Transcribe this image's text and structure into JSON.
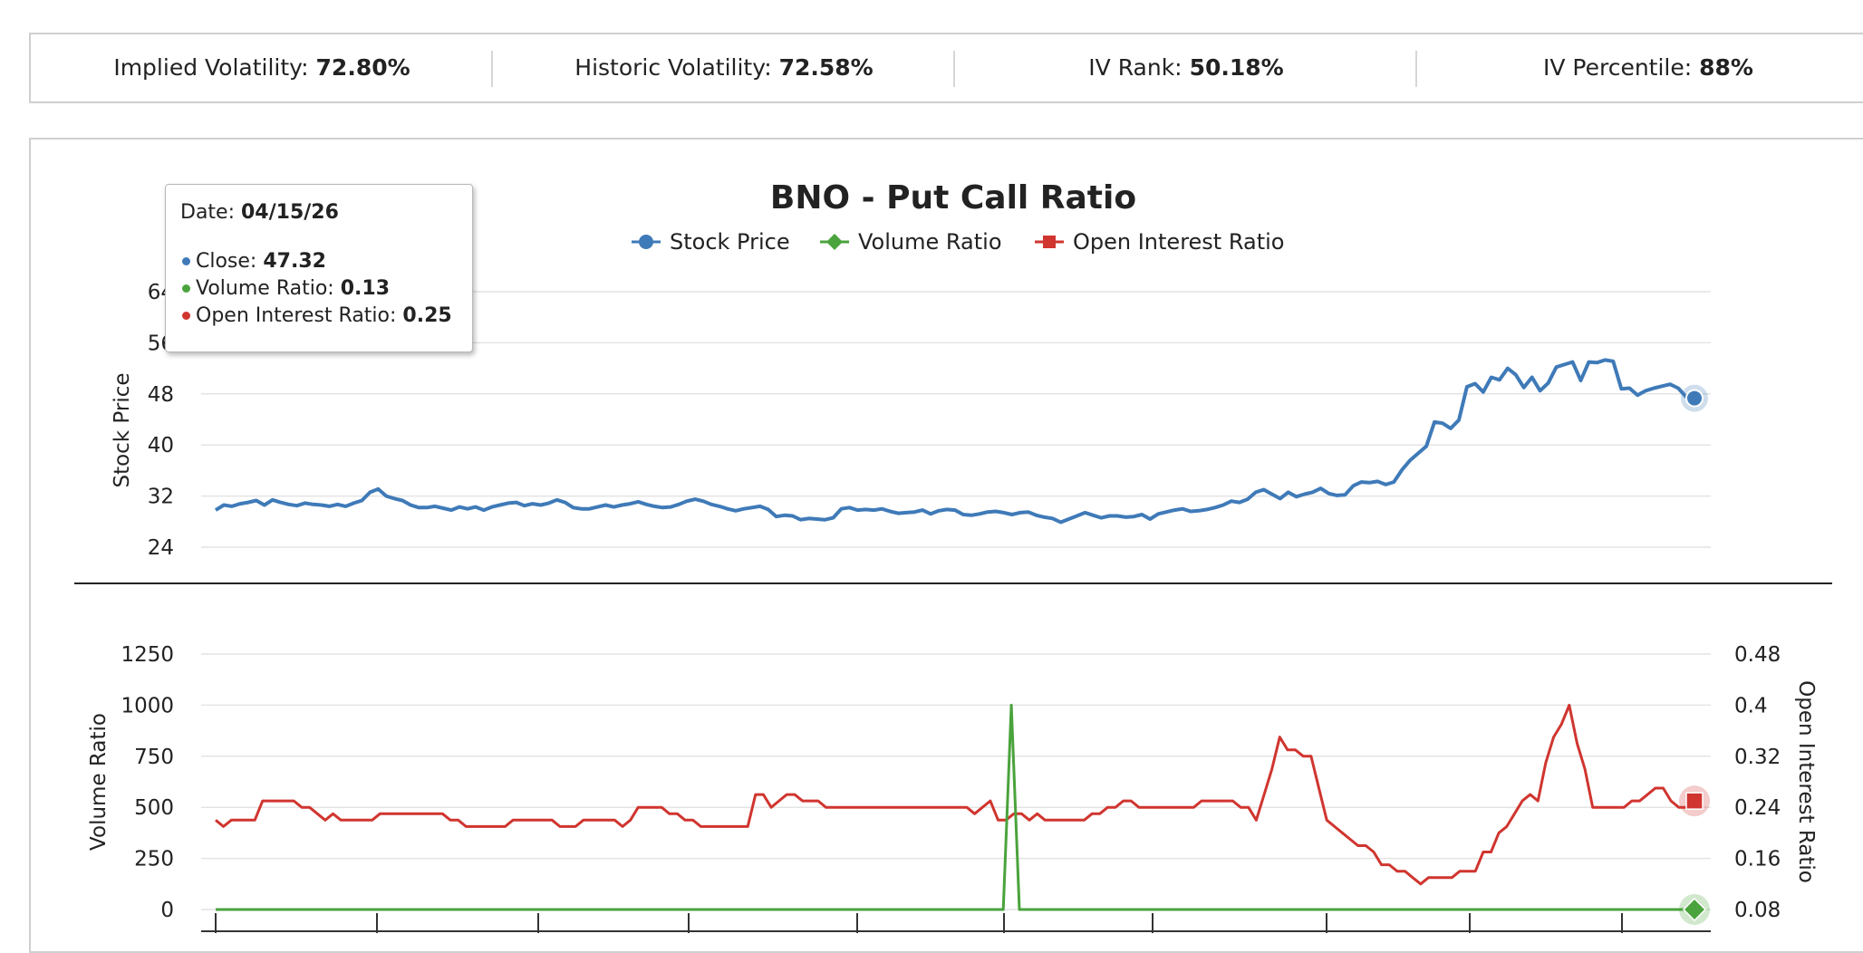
{
  "stats": [
    {
      "label": "Implied Volatility:",
      "value": "72.80%"
    },
    {
      "label": "Historic Volatility:",
      "value": "72.58%"
    },
    {
      "label": "IV Rank:",
      "value": "50.18%"
    },
    {
      "label": "IV Percentile:",
      "value": "88%"
    }
  ],
  "tooltip": {
    "date_label": "Date:",
    "date": "04/15/26",
    "close_label": "Close:",
    "close": "47.32",
    "volume_label": "Volume Ratio:",
    "volume": "0.13",
    "oi_label": "Open Interest Ratio:",
    "oi": "0.25"
  },
  "colors": {
    "stock": "#3f7ab8",
    "volume": "#4aa33c",
    "oi": "#d0352f",
    "grid": "#e4e4e4",
    "axis_text": "#222222"
  },
  "chart_data": {
    "type": "line",
    "title": "BNO - Put Call Ratio",
    "legend": [
      "Stock Price",
      "Volume Ratio",
      "Open Interest Ratio"
    ],
    "legend_position": "top-center",
    "grid": true,
    "upper_panel": {
      "ylabel": "Stock Price",
      "yticks": [
        "24",
        "32",
        "40",
        "48",
        "56",
        "64"
      ],
      "ylim": [
        24,
        64
      ],
      "series": [
        {
          "name": "Stock Price",
          "values": [
            29.8,
            30.6,
            30.4,
            30.8,
            31.0,
            31.3,
            30.6,
            31.4,
            31.0,
            30.7,
            30.5,
            30.9,
            30.7,
            30.6,
            30.4,
            30.7,
            30.4,
            30.9,
            31.3,
            32.6,
            33.1,
            32.0,
            31.6,
            31.3,
            30.6,
            30.2,
            30.2,
            30.4,
            30.1,
            29.8,
            30.3,
            30.0,
            30.3,
            29.8,
            30.3,
            30.6,
            30.9,
            31.0,
            30.5,
            30.8,
            30.6,
            30.9,
            31.4,
            31.0,
            30.2,
            30.0,
            30.0,
            30.3,
            30.6,
            30.3,
            30.6,
            30.8,
            31.1,
            30.7,
            30.4,
            30.2,
            30.3,
            30.7,
            31.2,
            31.5,
            31.2,
            30.7,
            30.4,
            30.0,
            29.7,
            30.0,
            30.2,
            30.4,
            29.9,
            28.8,
            29.0,
            28.9,
            28.3,
            28.5,
            28.4,
            28.3,
            28.6,
            30.0,
            30.2,
            29.8,
            29.9,
            29.8,
            30.0,
            29.6,
            29.3,
            29.4,
            29.5,
            29.8,
            29.2,
            29.7,
            29.9,
            29.8,
            29.1,
            29.0,
            29.2,
            29.5,
            29.6,
            29.4,
            29.1,
            29.4,
            29.5,
            29.0,
            28.7,
            28.5,
            27.9,
            28.4,
            28.9,
            29.4,
            29.0,
            28.6,
            28.9,
            28.9,
            28.7,
            28.8,
            29.1,
            28.4,
            29.2,
            29.5,
            29.8,
            30.0,
            29.6,
            29.7,
            29.9,
            30.2,
            30.6,
            31.2,
            31.0,
            31.5,
            32.6,
            33.0,
            32.3,
            31.6,
            32.6,
            31.9,
            32.3,
            32.6,
            33.2,
            32.4,
            32.1,
            32.2,
            33.6,
            34.2,
            34.1,
            34.3,
            33.8,
            34.2,
            36.1,
            37.6,
            38.7,
            39.8,
            43.6,
            43.4,
            42.6,
            43.9,
            49.1,
            49.6,
            48.3,
            50.6,
            50.2,
            52.0,
            51.0,
            49.0,
            50.6,
            48.5,
            49.7,
            52.2,
            52.6,
            53.0,
            50.1,
            53.0,
            52.9,
            53.3,
            53.1,
            48.8,
            48.9,
            47.8,
            48.5,
            48.9,
            49.2,
            49.5,
            48.9,
            47.5,
            47.32
          ]
        }
      ]
    },
    "lower_panel": {
      "ylabel_left": "Volume Ratio",
      "ylabel_right": "Open Interest Ratio",
      "yticks_left": [
        "0",
        "250",
        "500",
        "750",
        "1000",
        "1250"
      ],
      "yticks_right": [
        "0.08",
        "0.16",
        "0.24",
        "0.32",
        "0.4",
        "0.48"
      ],
      "ylim_left": [
        0,
        1250
      ],
      "ylim_right": [
        0.08,
        0.48
      ],
      "series": [
        {
          "name": "Volume Ratio",
          "values": [
            0,
            0,
            0,
            0,
            0,
            0,
            0,
            0,
            0,
            0,
            0,
            0,
            0,
            0,
            0,
            0,
            0,
            0,
            0,
            0,
            0,
            0,
            0,
            0,
            0,
            0,
            0,
            0,
            0,
            0,
            0,
            0,
            0,
            0,
            0,
            0,
            0,
            0,
            0,
            0,
            0,
            0,
            0,
            0,
            0,
            0,
            0,
            0,
            0,
            0,
            0,
            0,
            0,
            0,
            0,
            0,
            0,
            0,
            0,
            0,
            0,
            0,
            0,
            0,
            0,
            0,
            0,
            0,
            0,
            0,
            0,
            0,
            0,
            0,
            0,
            0,
            0,
            0,
            0,
            0,
            0,
            0,
            0,
            0,
            0,
            0,
            0,
            0,
            0,
            0,
            0,
            0,
            0,
            0,
            0,
            0,
            0,
            0,
            0,
            1000,
            0,
            0,
            0,
            0,
            0,
            0,
            0,
            0,
            0,
            0,
            0,
            0,
            0,
            0,
            0,
            0,
            0,
            0,
            0,
            0,
            0,
            0,
            0,
            0,
            0,
            0,
            0,
            0,
            0,
            0,
            0,
            0,
            0,
            0,
            0,
            0,
            0,
            0,
            0,
            0,
            0,
            0,
            0,
            0,
            0,
            0,
            0,
            0,
            0,
            0,
            0,
            0,
            0,
            0,
            0,
            0,
            0,
            0,
            0,
            0,
            0,
            0,
            0,
            0,
            0,
            0,
            0,
            0,
            0,
            0,
            0,
            0,
            0,
            0,
            0,
            0,
            0,
            0,
            0,
            0,
            0,
            0,
            0,
            0,
            0.13
          ]
        },
        {
          "name": "Open Interest Ratio",
          "values": [
            0.22,
            0.21,
            0.22,
            0.22,
            0.22,
            0.22,
            0.25,
            0.25,
            0.25,
            0.25,
            0.25,
            0.24,
            0.24,
            0.23,
            0.22,
            0.23,
            0.22,
            0.22,
            0.22,
            0.22,
            0.22,
            0.23,
            0.23,
            0.23,
            0.23,
            0.23,
            0.23,
            0.23,
            0.23,
            0.23,
            0.22,
            0.22,
            0.21,
            0.21,
            0.21,
            0.21,
            0.21,
            0.21,
            0.22,
            0.22,
            0.22,
            0.22,
            0.22,
            0.22,
            0.21,
            0.21,
            0.21,
            0.22,
            0.22,
            0.22,
            0.22,
            0.22,
            0.21,
            0.22,
            0.24,
            0.24,
            0.24,
            0.24,
            0.23,
            0.23,
            0.22,
            0.22,
            0.21,
            0.21,
            0.21,
            0.21,
            0.21,
            0.21,
            0.21,
            0.26,
            0.26,
            0.24,
            0.25,
            0.26,
            0.26,
            0.25,
            0.25,
            0.25,
            0.24,
            0.24,
            0.24,
            0.24,
            0.24,
            0.24,
            0.24,
            0.24,
            0.24,
            0.24,
            0.24,
            0.24,
            0.24,
            0.24,
            0.24,
            0.24,
            0.24,
            0.24,
            0.24,
            0.23,
            0.24,
            0.25,
            0.22,
            0.22,
            0.23,
            0.23,
            0.22,
            0.23,
            0.22,
            0.22,
            0.22,
            0.22,
            0.22,
            0.22,
            0.23,
            0.23,
            0.24,
            0.24,
            0.25,
            0.25,
            0.24,
            0.24,
            0.24,
            0.24,
            0.24,
            0.24,
            0.24,
            0.24,
            0.25,
            0.25,
            0.25,
            0.25,
            0.25,
            0.24,
            0.24,
            0.22,
            0.26,
            0.3,
            0.35,
            0.33,
            0.33,
            0.32,
            0.32,
            0.27,
            0.22,
            0.21,
            0.2,
            0.19,
            0.18,
            0.18,
            0.17,
            0.15,
            0.15,
            0.14,
            0.14,
            0.13,
            0.12,
            0.13,
            0.13,
            0.13,
            0.13,
            0.14,
            0.14,
            0.14,
            0.17,
            0.17,
            0.2,
            0.21,
            0.23,
            0.25,
            0.26,
            0.25,
            0.31,
            0.35,
            0.37,
            0.4,
            0.34,
            0.3,
            0.24,
            0.24,
            0.24,
            0.24,
            0.24,
            0.25,
            0.25,
            0.26,
            0.27,
            0.27,
            0.25,
            0.24,
            0.24,
            0.25
          ]
        }
      ]
    }
  }
}
